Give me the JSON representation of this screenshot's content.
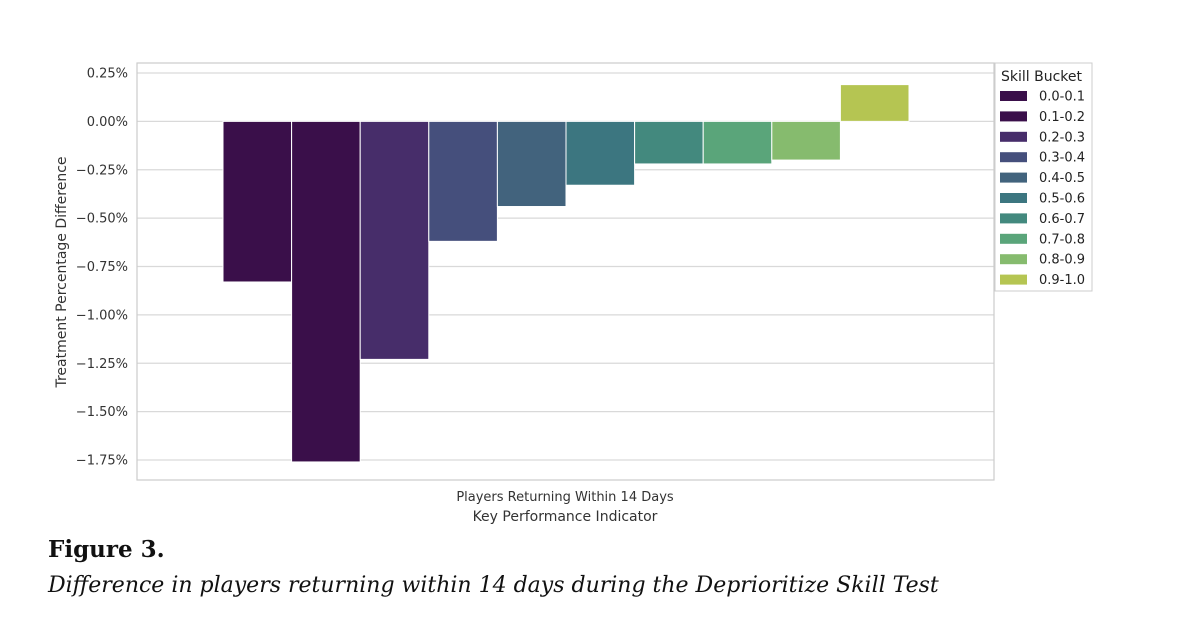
{
  "chart_data": {
    "type": "bar",
    "categories": [
      "Players Returning Within 14 Days"
    ],
    "xlabel": "Key Performance Indicator",
    "ylabel": "Treatment Percentage Difference",
    "ylim": [
      -1.85,
      0.3
    ],
    "yticks": [
      0.25,
      0.0,
      -0.25,
      -0.5,
      -0.75,
      -1.0,
      -1.25,
      -1.5,
      -1.75
    ],
    "ytick_labels": [
      "0.25%",
      "0.00%",
      "−0.25%",
      "−0.50%",
      "−0.75%",
      "−1.00%",
      "−1.25%",
      "−1.50%",
      "−1.75%"
    ],
    "grid": true,
    "legend": {
      "title": "Skill Bucket",
      "placement": "right"
    },
    "series": [
      {
        "name": "0.0-0.1",
        "values": [
          -0.83
        ],
        "color": "#3a0f4a"
      },
      {
        "name": "0.1-0.2",
        "values": [
          -1.76
        ],
        "color": "#3a0f4a"
      },
      {
        "name": "0.2-0.3",
        "values": [
          -1.23
        ],
        "color": "#472d6a"
      },
      {
        "name": "0.3-0.4",
        "values": [
          -0.62
        ],
        "color": "#454f7c"
      },
      {
        "name": "0.4-0.5",
        "values": [
          -0.44
        ],
        "color": "#42637d"
      },
      {
        "name": "0.5-0.6",
        "values": [
          -0.33
        ],
        "color": "#3c7680"
      },
      {
        "name": "0.6-0.7",
        "values": [
          -0.22
        ],
        "color": "#43897e"
      },
      {
        "name": "0.7-0.8",
        "values": [
          -0.22
        ],
        "color": "#5aa57a"
      },
      {
        "name": "0.8-0.9",
        "values": [
          -0.2
        ],
        "color": "#86bb6e"
      },
      {
        "name": "0.9-1.0",
        "values": [
          0.19
        ],
        "color": "#b5c552"
      }
    ]
  },
  "figure": {
    "number": "Figure 3.",
    "title": "Difference in players returning within 14 days during the Deprioritize Skill Test"
  }
}
